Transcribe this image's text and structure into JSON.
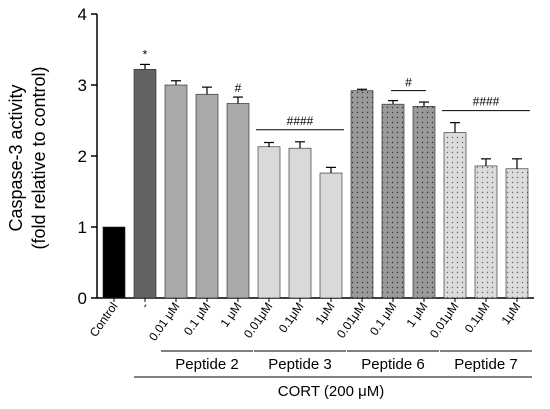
{
  "chart_data": {
    "type": "bar",
    "title": "",
    "ylabel_line1": "Caspase-3 activity",
    "ylabel_line2": "(fold relative to control)",
    "ylim": [
      0,
      4
    ],
    "yticks": [
      "0",
      "1",
      "2",
      "3",
      "4"
    ],
    "grid": false,
    "categories": [
      "Control",
      "-",
      "0.01 μM",
      "0.1 μM",
      "1 μM",
      "0.01μM",
      "0.1μM",
      "1μM",
      "0.01μM",
      "0.1 μM",
      "1 μM",
      "0.01μM",
      "0.1μM",
      "1μM"
    ],
    "values": [
      1.0,
      3.22,
      3.0,
      2.87,
      2.74,
      2.13,
      2.11,
      1.76,
      2.92,
      2.73,
      2.7,
      2.33,
      1.86,
      1.82
    ],
    "errors": [
      0.0,
      0.07,
      0.06,
      0.1,
      0.09,
      0.06,
      0.09,
      0.08,
      0.02,
      0.05,
      0.06,
      0.14,
      0.1,
      0.14
    ],
    "bar_styles": [
      "black",
      "dark",
      "mid",
      "mid",
      "mid",
      "light",
      "light",
      "light",
      "dots-dark",
      "dots-dark",
      "dots-dark",
      "dots-light",
      "dots-light",
      "dots-light"
    ],
    "star_annotation": "*",
    "groups": [
      {
        "name": "Peptide 2",
        "annotation": "#"
      },
      {
        "name": "Peptide 3",
        "annotation": "####"
      },
      {
        "name": "Peptide 6",
        "annotation": "#"
      },
      {
        "name": "Peptide 7",
        "annotation": "####"
      }
    ],
    "treatment_label": "CORT (200 μM)"
  }
}
